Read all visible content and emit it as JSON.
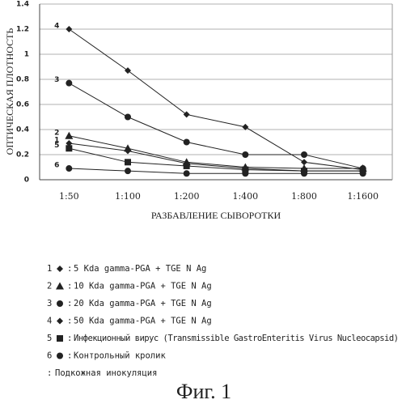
{
  "chart_data": {
    "type": "line",
    "ylabel": "ОПТИЧЕСКАЯ ПЛОТНОСТЬ",
    "xlabel": "РАЗБАВЛЕНИЕ СЫВОРОТКИ",
    "categories": [
      "1:50",
      "1:100",
      "1:200",
      "1:400",
      "1:800",
      "1:1600"
    ],
    "ylim": [
      0,
      1.4
    ],
    "yticks": [
      0,
      0.2,
      0.4,
      0.6,
      0.8,
      1,
      1.2,
      1.4
    ],
    "grid": true,
    "color": "#222222",
    "legend_separator": ":",
    "series": [
      {
        "label": "1",
        "marker": "diamond",
        "name": "5 Kda gamma-PGA + TGE N Ag",
        "values": [
          0.29,
          0.23,
          0.13,
          0.09,
          0.07,
          0.07
        ]
      },
      {
        "label": "2",
        "marker": "triangle",
        "name": "10 Kda gamma-PGA + TGE N Ag",
        "values": [
          0.35,
          0.25,
          0.14,
          0.1,
          0.09,
          0.09
        ]
      },
      {
        "label": "3",
        "marker": "circle",
        "name": "20 Kda gamma-PGA + TGE N Ag",
        "values": [
          0.77,
          0.5,
          0.3,
          0.2,
          0.2,
          0.09
        ]
      },
      {
        "label": "4",
        "marker": "diamond",
        "name": "50 Kda gamma-PGA + TGE N Ag",
        "values": [
          1.2,
          0.87,
          0.52,
          0.42,
          0.14,
          0.08
        ]
      },
      {
        "label": "5",
        "marker": "square",
        "name": "Инфекционный вирус (Transmissible GastroEnteritis Virus Nucleocapsid)",
        "values": [
          0.25,
          0.14,
          0.11,
          0.08,
          0.07,
          0.07
        ]
      },
      {
        "label": "6",
        "marker": "circle",
        "name": "Контрольный кролик",
        "values": [
          0.09,
          0.07,
          0.05,
          0.05,
          0.05,
          0.05
        ]
      }
    ],
    "note": "Подкожная инокуляция",
    "caption": "Фиг. 1"
  }
}
